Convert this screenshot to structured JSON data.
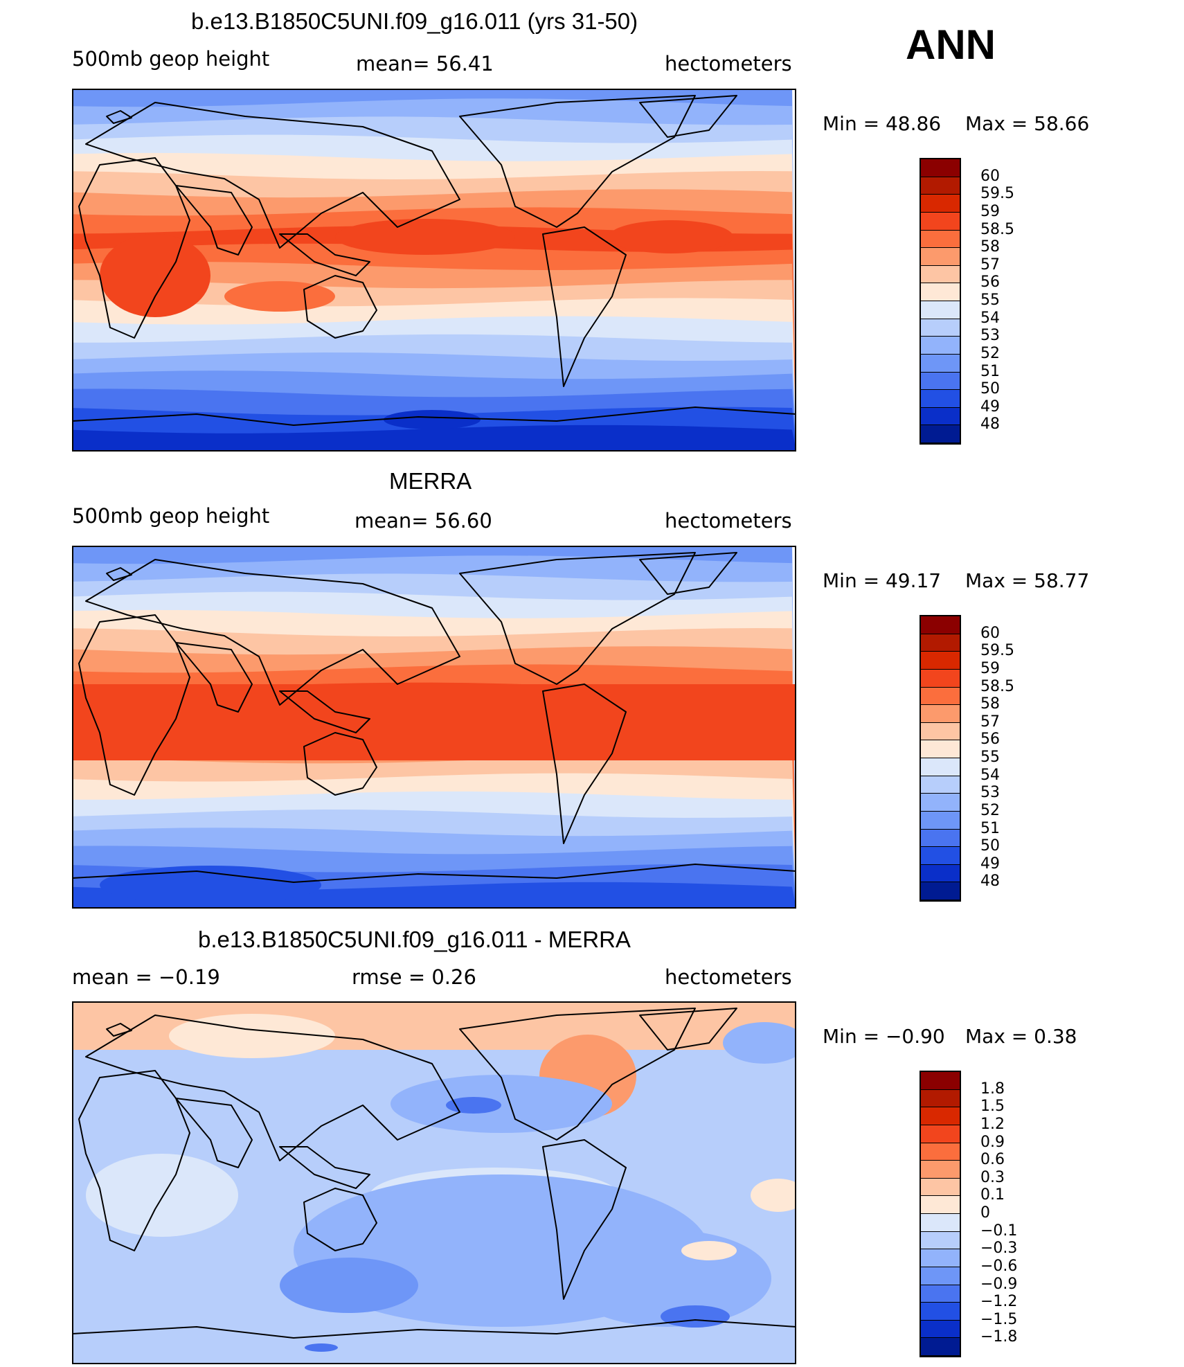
{
  "season": "ANN",
  "unit_label": "hectometers",
  "coast_color": "#000000",
  "panels": [
    {
      "title": "b.e13.B1850C5UNI.f09_g16.011 (yrs 31-50)",
      "left_label": "500mb  geop  height",
      "mid_label": "mean=   56.41",
      "right_label": "hectometers",
      "min_label": "Min  =     48.86",
      "max_label": "Max  =     58.66",
      "field_type": "model"
    },
    {
      "title": "MERRA",
      "left_label": "500mb  geop  height",
      "mid_label": "mean=   56.60",
      "right_label": "hectometers",
      "min_label": "Min  =     49.17",
      "max_label": "Max  =     58.77",
      "field_type": "obs"
    },
    {
      "title": "b.e13.B1850C5UNI.f09_g16.011 - MERRA",
      "left_label": "mean  =    −0.19",
      "mid_label": "rmse  =     0.26",
      "right_label": "hectometers",
      "min_label": "Min  =    −0.90",
      "max_label": "Max  =     0.38",
      "field_type": "diff"
    }
  ],
  "colorbar_abs": {
    "labels": [
      "60",
      "59.5",
      "59",
      "58.5",
      "58",
      "57",
      "56",
      "55",
      "54",
      "53",
      "52",
      "51",
      "50",
      "49",
      "48"
    ],
    "colors": [
      "#8b0000",
      "#b21a00",
      "#d92800",
      "#f2451d",
      "#fb6e3d",
      "#fc9a6c",
      "#fdc5a4",
      "#fee8d6",
      "#dbe7fa",
      "#b7cefb",
      "#92b3fb",
      "#6e96f7",
      "#4a74f0",
      "#2250e4",
      "#0a2fc9",
      "#001b92"
    ]
  },
  "colorbar_diff": {
    "labels": [
      "1.8",
      "1.5",
      "1.2",
      "0.9",
      "0.6",
      "0.3",
      "0.1",
      "0",
      "−0.1",
      "−0.3",
      "−0.6",
      "−0.9",
      "−1.2",
      "−1.5",
      "−1.8"
    ],
    "colors": [
      "#8b0000",
      "#b21a00",
      "#d92800",
      "#f2451d",
      "#fb6e3d",
      "#fc9a6c",
      "#fdc5a4",
      "#fee8d6",
      "#dbe7fa",
      "#b7cefb",
      "#92b3fb",
      "#6e96f7",
      "#4a74f0",
      "#2250e4",
      "#0a2fc9",
      "#001b92"
    ]
  },
  "band_colors": {
    "model": [
      "#6e96f7",
      "#92b3fb",
      "#b7cefb",
      "#dbe7fa",
      "#fee8d6",
      "#fdc5a4",
      "#fc9a6c",
      "#fb6e3d",
      "#f2451d",
      "#fb6e3d",
      "#fc9a6c",
      "#fdc5a4",
      "#fee8d6",
      "#dbe7fa",
      "#b7cefb",
      "#92b3fb",
      "#6e96f7",
      "#4a74f0",
      "#2250e4",
      "#0a2fc9"
    ],
    "obs": [
      "#6e96f7",
      "#92b3fb",
      "#b7cefb",
      "#dbe7fa",
      "#fee8d6",
      "#fdc5a4",
      "#fc9a6c",
      "#fb6e3d",
      "#f2451d",
      "#f2451d",
      "#fb6e3d",
      "#fc9a6c",
      "#fdc5a4",
      "#fee8d6",
      "#dbe7fa",
      "#b7cefb",
      "#92b3fb",
      "#6e96f7",
      "#4a74f0",
      "#2250e4"
    ],
    "diff_base": "#b7cefb"
  }
}
